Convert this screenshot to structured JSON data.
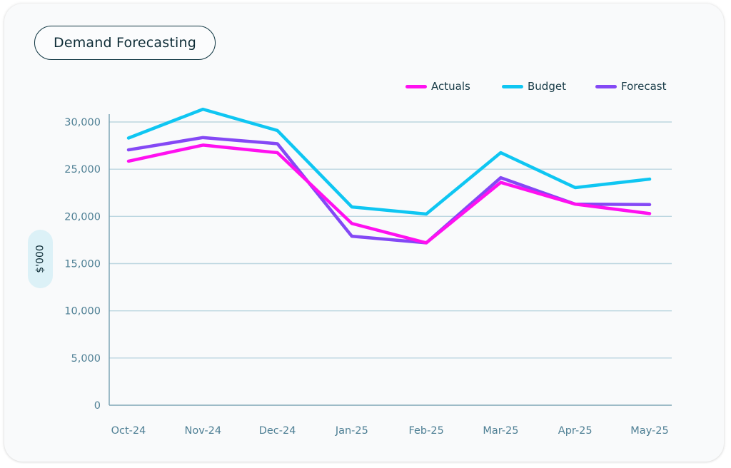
{
  "card": {
    "title": "Demand Forecasting"
  },
  "chart_data": {
    "type": "line",
    "title": "Demand Forecasting",
    "xlabel": "",
    "ylabel": "$'000",
    "categories": [
      "Oct-24",
      "Nov-24",
      "Dec-24",
      "Jan-25",
      "Feb-25",
      "Mar-25",
      "Apr-25",
      "May-25"
    ],
    "ylim": [
      0,
      30000
    ],
    "yticks": [
      0,
      5000,
      10000,
      15000,
      20000,
      25000,
      30000
    ],
    "ytick_labels": [
      "0",
      "5,000",
      "10,000",
      "15,000",
      "20,000",
      "25,000",
      "30,000"
    ],
    "grid": true,
    "legend_position": "top-right",
    "series": [
      {
        "name": "Actuals",
        "color": "#ff10f0",
        "values": [
          25850,
          27550,
          26750,
          19250,
          17200,
          23600,
          21300,
          20300
        ]
      },
      {
        "name": "Budget",
        "color": "#0fc6f2",
        "values": [
          28300,
          31350,
          29100,
          21000,
          20250,
          26750,
          23050,
          23950
        ]
      },
      {
        "name": "Forecast",
        "color": "#8448f5",
        "values": [
          27050,
          28350,
          27700,
          17900,
          17200,
          24100,
          21300,
          21250
        ]
      }
    ]
  }
}
